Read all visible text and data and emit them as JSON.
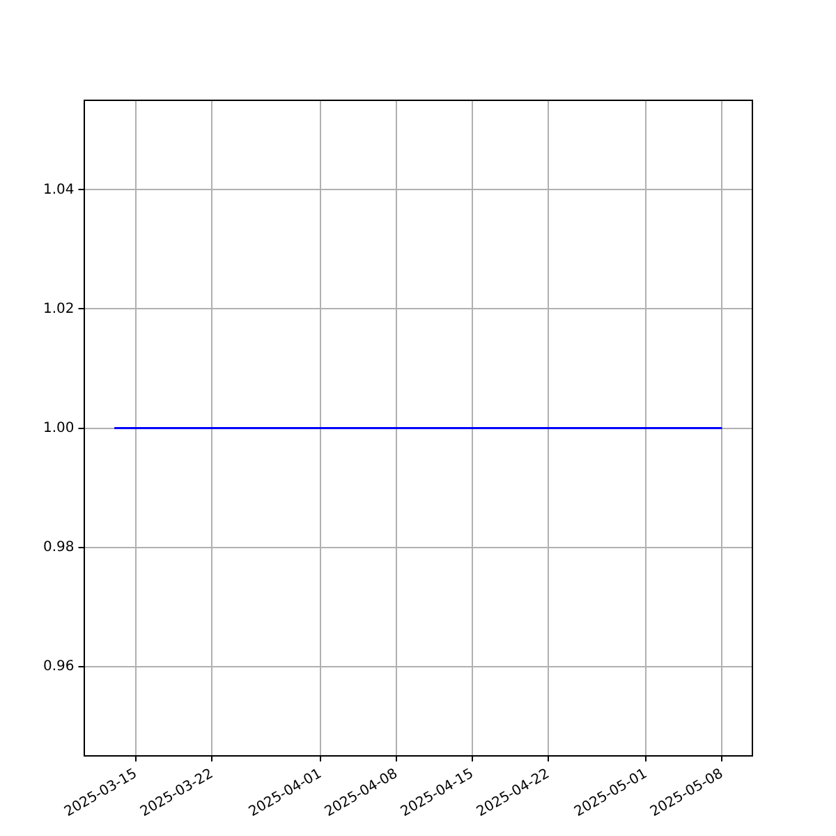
{
  "chart_data": {
    "type": "line",
    "x": [
      "2025-03-13",
      "2025-05-08"
    ],
    "series": [
      {
        "color": "#0000ff",
        "values": [
          1,
          1
        ]
      }
    ],
    "xlim": [
      "2025-03-10T04:48",
      "2025-05-10T19:12"
    ],
    "xticks": [
      "2025-03-15",
      "2025-03-22",
      "2025-04-01",
      "2025-04-08",
      "2025-04-15",
      "2025-04-22",
      "2025-05-01",
      "2025-05-08"
    ],
    "ylim": [
      0.945,
      1.055
    ],
    "yticks": [
      {
        "value": 0.96,
        "label": "0.96"
      },
      {
        "value": 0.98,
        "label": "0.98"
      },
      {
        "value": 1,
        "label": "1.00"
      },
      {
        "value": 1.02,
        "label": "1.02"
      },
      {
        "value": 1.04,
        "label": "1.04"
      }
    ],
    "grid": true,
    "legend": false,
    "marker": "none",
    "line_style": "solid"
  }
}
